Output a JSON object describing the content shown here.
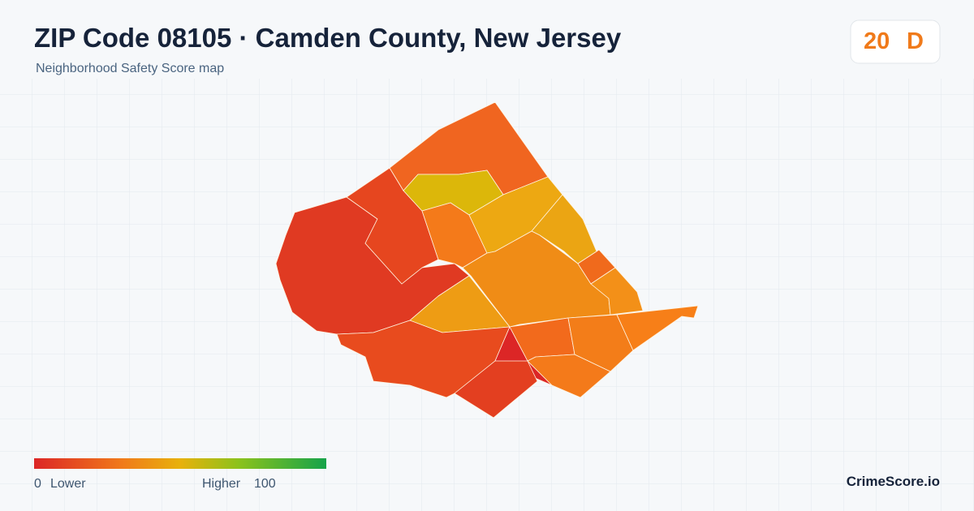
{
  "header": {
    "title": "ZIP Code 08105 · Camden County, New Jersey",
    "subtitle": "Neighborhood Safety Score map"
  },
  "score": {
    "value": "20",
    "grade": "D"
  },
  "legend": {
    "min": "0",
    "min_label": "Lower",
    "max_label": "Higher",
    "max": "100"
  },
  "brand": "CrimeScore.io"
}
